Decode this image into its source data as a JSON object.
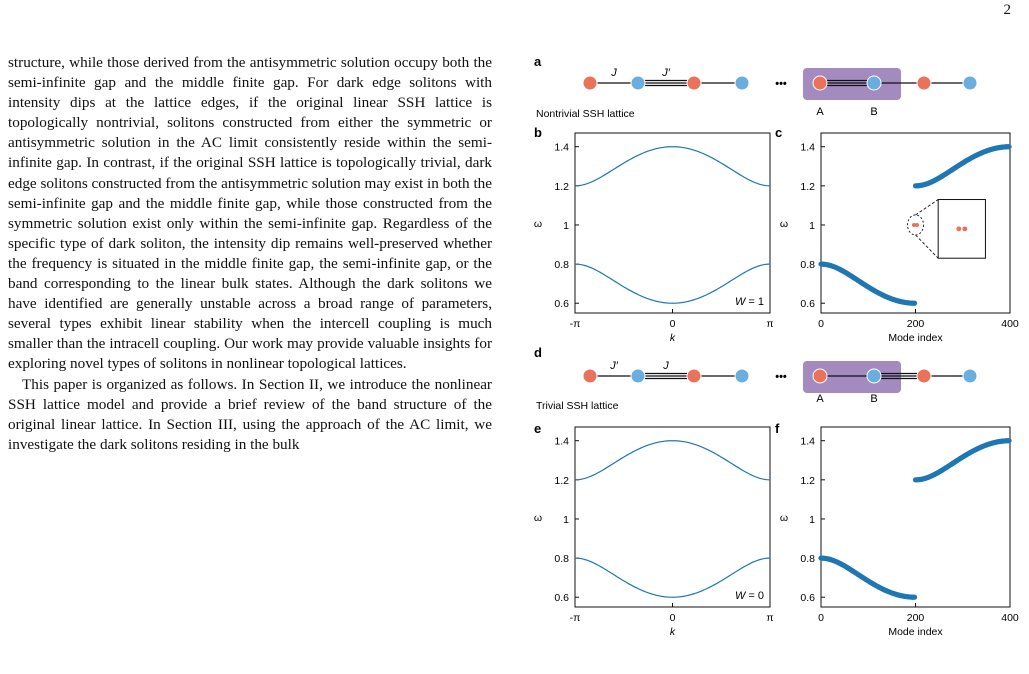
{
  "page_number": "2",
  "body": {
    "paragraph1": "structure, while those derived from the antisymmetric solution occupy both the semi-infinite gap and the middle finite gap. For dark edge solitons with intensity dips at the lattice edges, if the original linear SSH lattice is topologically nontrivial, solitons constructed from either the symmetric or antisymmetric solution in the AC limit consistently reside within the semi-infinite gap. In contrast, if the original SSH lattice is topologically trivial, dark edge solitons constructed from the antisymmetric solution may exist in both the semi-infinite gap and the middle finite gap, while those constructed from the symmetric solution exist only within the semi-infinite gap. Regardless of the specific type of dark soliton, the intensity dip remains well-preserved whether the frequency is situated in the middle finite gap, the semi-infinite gap, or the band corresponding to the linear bulk states. Although the dark solitons we have identified are generally unstable across a broad range of parameters, several types exhibit linear stability when the intercell coupling is much smaller than the intracell coupling. Our work may provide valuable insights for exploring novel types of solitons in nonlinear topological lattices.",
    "paragraph2": "This paper is organized as follows. In Section II, we introduce the nonlinear SSH lattice model and provide a brief review of the band structure of the original linear lattice. In Section III, using the approach of the AC limit, we investigate the dark solitons residing in the bulk"
  },
  "figure": {
    "colors": {
      "siteA": "#e8735a",
      "siteB": "#6aaee0",
      "line": "#1f77b4",
      "cellBox": "#a48bbf",
      "dots": "#1f77b4"
    },
    "panel_labels": [
      "a",
      "b",
      "c",
      "d",
      "e",
      "f"
    ],
    "lattice_top": {
      "coupling1": "J",
      "coupling2": "J′",
      "caption": "Nontrivial SSH lattice",
      "site_a": "A",
      "site_b": "B",
      "ellipsis": "•••"
    },
    "lattice_bottom": {
      "coupling1": "J′",
      "coupling2": "J",
      "caption": "Trivial SSH lattice",
      "site_a": "A",
      "site_b": "B",
      "ellipsis": "•••"
    },
    "band_axis": {
      "xlabel": "k",
      "ylabel": "ω",
      "xticks": [
        "-π",
        "0",
        "π"
      ],
      "yticks": [
        "0.6",
        "0.8",
        "1",
        "1.2",
        "1.4"
      ]
    },
    "mode_axis": {
      "xlabel": "Mode index",
      "ylabel": "ω",
      "xticks": [
        "0",
        "200",
        "400"
      ],
      "yticks": [
        "0.6",
        "0.8",
        "1",
        "1.2",
        "1.4"
      ]
    },
    "winding_top": "W = 1",
    "winding_bottom": "W = 0"
  },
  "chart_data": [
    {
      "panel": "b",
      "type": "line",
      "xlabel": "k",
      "ylabel": "ω",
      "xlim": [
        -3.1416,
        3.1416
      ],
      "ylim": [
        0.55,
        1.47
      ],
      "series": [
        {
          "func": "1 + sqrt(0.1 + 0.06 cos k)"
        },
        {
          "func": "1 - sqrt(0.1 + 0.06 cos k)"
        }
      ],
      "samples": {
        "k": [
          -3.1416,
          0,
          3.1416
        ],
        "upper": [
          1.2,
          1.4,
          1.2
        ],
        "lower": [
          0.8,
          0.6,
          0.8
        ]
      }
    },
    {
      "panel": "c",
      "type": "scatter",
      "xlabel": "Mode index",
      "ylabel": "ω",
      "xlim": [
        0,
        400
      ],
      "ylim": [
        0.55,
        1.47
      ],
      "lower_band": {
        "index": [
          0,
          199
        ],
        "omega": [
          0.6,
          0.8
        ]
      },
      "upper_band": {
        "index": [
          200,
          399
        ],
        "omega": [
          1.2,
          1.4
        ]
      },
      "edge_states": {
        "count": 2,
        "omega": 1.0
      }
    },
    {
      "panel": "e",
      "type": "line",
      "xlabel": "k",
      "ylabel": "ω",
      "xlim": [
        -3.1416,
        3.1416
      ],
      "ylim": [
        0.55,
        1.47
      ],
      "series": [
        {
          "func": "1 + sqrt(0.1 + 0.06 cos k)"
        },
        {
          "func": "1 - sqrt(0.1 + 0.06 cos k)"
        }
      ],
      "samples": {
        "k": [
          -3.1416,
          0,
          3.1416
        ],
        "upper": [
          1.2,
          1.4,
          1.2
        ],
        "lower": [
          0.8,
          0.6,
          0.8
        ]
      }
    },
    {
      "panel": "f",
      "type": "scatter",
      "xlabel": "Mode index",
      "ylabel": "ω",
      "xlim": [
        0,
        400
      ],
      "ylim": [
        0.55,
        1.47
      ],
      "lower_band": {
        "index": [
          0,
          199
        ],
        "omega": [
          0.6,
          0.8
        ]
      },
      "upper_band": {
        "index": [
          200,
          399
        ],
        "omega": [
          1.2,
          1.4
        ]
      }
    }
  ]
}
